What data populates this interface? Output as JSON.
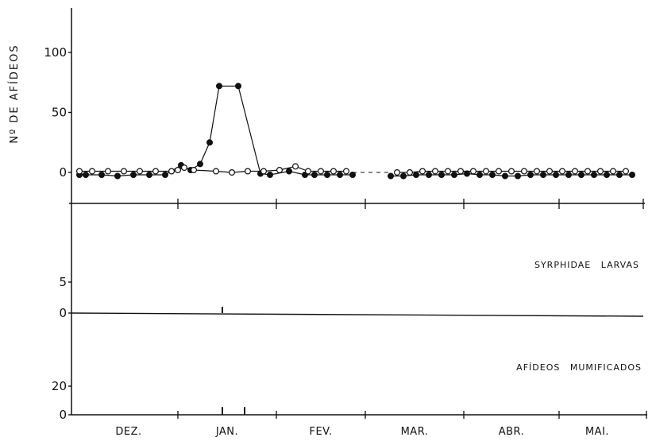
{
  "chart_data": [
    {
      "type": "line",
      "title": "",
      "ylabel": "Nº DE AFÍDEOS",
      "xlabel": "",
      "ylim": [
        -5,
        135
      ],
      "yticks": [
        0,
        50,
        100
      ],
      "grid": false,
      "months": [
        "DEZ.",
        "JAN.",
        "FEV.",
        "MAR.",
        "ABR.",
        "MAI."
      ],
      "x_domain": [
        0,
        175
      ],
      "month_boundaries": [
        31,
        62,
        90,
        121,
        151
      ],
      "series": [
        {
          "marker": "filled-circle",
          "line": "solid",
          "x": [
            0,
            2,
            7,
            12,
            17,
            22,
            27,
            32,
            35,
            38,
            41,
            44,
            50,
            57,
            60,
            66,
            71,
            74,
            78,
            82,
            86
          ],
          "y": [
            -2,
            -2,
            -2,
            -3,
            -2,
            -2,
            -2,
            6,
            2,
            7,
            25,
            72,
            72,
            -1,
            -2,
            1,
            -2,
            -2,
            -2,
            -2,
            -2
          ]
        },
        {
          "marker": "open-circle",
          "line": "solid",
          "x": [
            0,
            4,
            9,
            14,
            19,
            24,
            29,
            31,
            33,
            36,
            43,
            48,
            53,
            58,
            63,
            68,
            72,
            76,
            80,
            84
          ],
          "y": [
            1,
            1,
            1,
            1,
            1,
            1,
            1,
            2,
            4,
            2,
            1,
            0,
            1,
            1,
            2,
            5,
            1,
            1,
            1,
            1
          ]
        },
        {
          "marker": "filled-circle",
          "line": "solid",
          "x": [
            98,
            102,
            106,
            110,
            114,
            118,
            122,
            126,
            130,
            134,
            138,
            142,
            146,
            150,
            154,
            158,
            162,
            166,
            170,
            174
          ],
          "y": [
            -3,
            -3,
            -2,
            -2,
            -2,
            -2,
            -1,
            -2,
            -2,
            -3,
            -3,
            -2,
            -2,
            -2,
            -2,
            -2,
            -2,
            -2,
            -2,
            -2
          ]
        },
        {
          "marker": "open-circle",
          "line": "solid",
          "x": [
            100,
            104,
            108,
            112,
            116,
            120,
            124,
            128,
            132,
            136,
            140,
            144,
            148,
            152,
            156,
            160,
            164,
            168,
            172
          ],
          "y": [
            0,
            0,
            1,
            1,
            1,
            1,
            1,
            1,
            1,
            1,
            1,
            1,
            1,
            1,
            1,
            1,
            1,
            1,
            1
          ]
        }
      ]
    },
    {
      "type": "bar",
      "title": "SYRPHIDAE LARVAS",
      "ylim": [
        0,
        8
      ],
      "yticks": [
        0,
        5
      ],
      "x": [
        45
      ],
      "values": [
        1
      ]
    },
    {
      "type": "bar",
      "title": "AFÍDEOS MUMIFICADOS",
      "ylim": [
        0,
        40
      ],
      "yticks": [
        0,
        20
      ],
      "x": [
        45,
        52
      ],
      "values": [
        1,
        1
      ]
    }
  ]
}
